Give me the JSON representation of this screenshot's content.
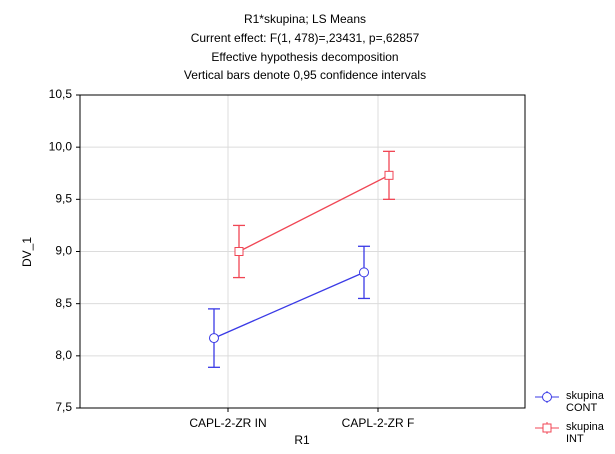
{
  "chart_data": {
    "type": "line",
    "title": "R1*skupina; LS Means",
    "subtitle": [
      "Current effect: F(1, 478)=,23431, p=,62857",
      "Effective hypothesis decomposition",
      "Vertical bars denote 0,95 confidence intervals"
    ],
    "x_label": "R1",
    "y_label": "DV_1",
    "categories": [
      "CAPL-2-ZR IN",
      "CAPL-2-ZR F"
    ],
    "series": [
      {
        "name": "skupina CONT",
        "color": "#3a3ae6",
        "marker": "circle",
        "values": [
          8.17,
          8.8
        ],
        "errors": [
          0.28,
          0.25
        ]
      },
      {
        "name": "skupina INT",
        "color": "#f04654",
        "marker": "square",
        "values": [
          9.0,
          9.73
        ],
        "errors": [
          0.25,
          0.23
        ]
      }
    ],
    "ylim": [
      7.5,
      10.5
    ],
    "yticks": [
      {
        "value": 7.5,
        "label": "7,5"
      },
      {
        "value": 8.0,
        "label": "8,0"
      },
      {
        "value": 8.5,
        "label": "8,5"
      },
      {
        "value": 9.0,
        "label": "9,0"
      },
      {
        "value": 9.5,
        "label": "9,5"
      },
      {
        "value": 10.0,
        "label": "10,0"
      },
      {
        "value": 10.5,
        "label": "10,5"
      }
    ],
    "grid": true,
    "legend": "bottom-right"
  }
}
